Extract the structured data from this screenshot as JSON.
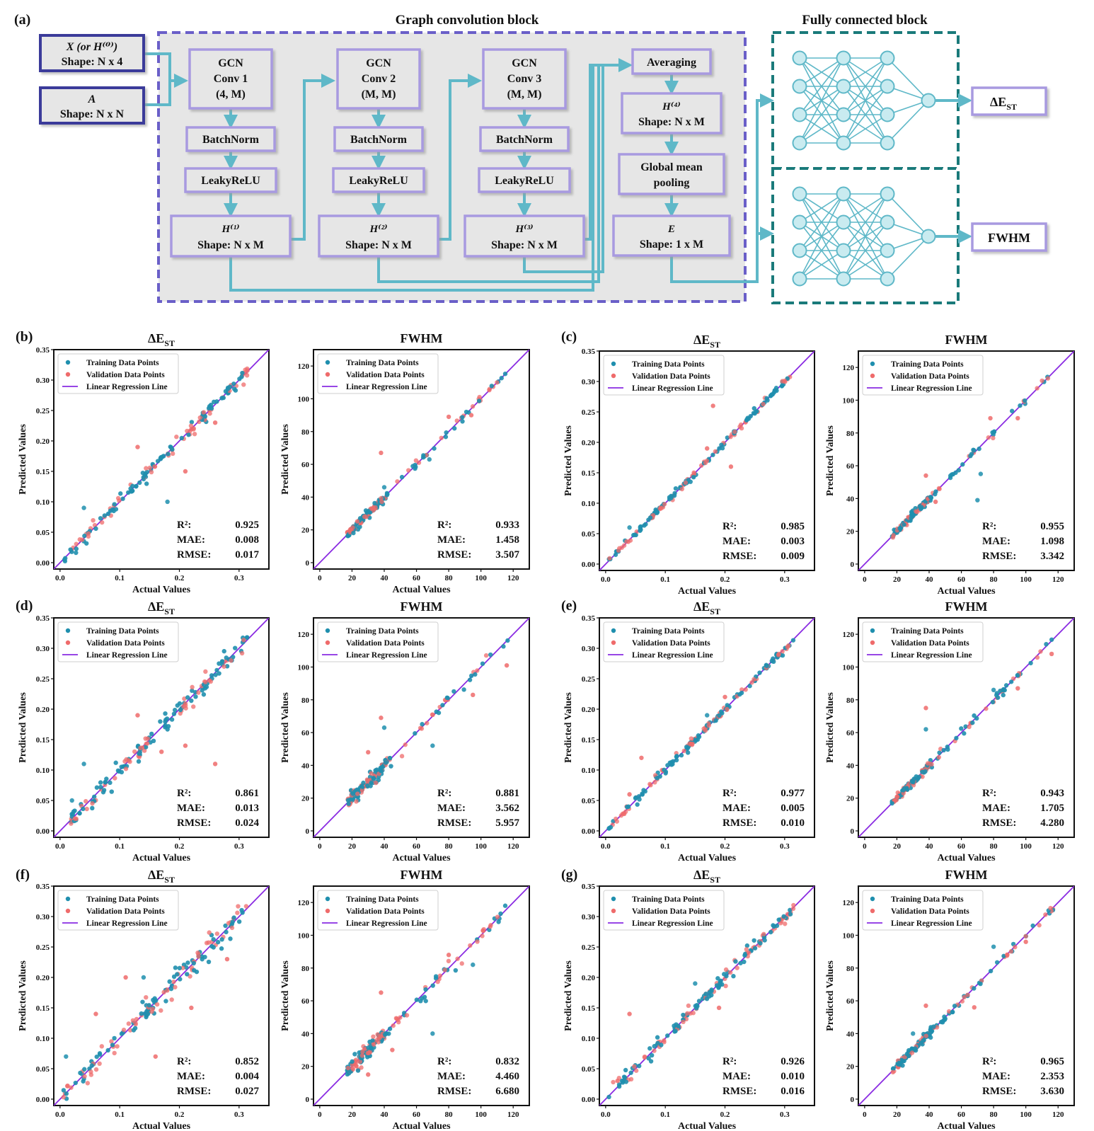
{
  "panel_a": {
    "letter": "(a)",
    "graph_conv_title": "Graph convolution block",
    "fc_title": "Fully connected block",
    "inputs": [
      {
        "line1": "X (or H⁽⁰⁾)",
        "line2": "Shape: N x 4"
      },
      {
        "line1": "A",
        "line2": "Shape: N x N"
      }
    ],
    "columns": [
      {
        "conv": [
          "GCN",
          "Conv 1",
          "(4, M)"
        ],
        "bn": "BatchNorm",
        "act": "LeakyReLU",
        "h1": "H⁽¹⁾",
        "h2": "Shape: N x M"
      },
      {
        "conv": [
          "GCN",
          "Conv 2",
          "(M, M)"
        ],
        "bn": "BatchNorm",
        "act": "LeakyReLU",
        "h1": "H⁽²⁾",
        "h2": "Shape: N x M"
      },
      {
        "conv": [
          "GCN",
          "Conv 3",
          "(M, M)"
        ],
        "bn": "BatchNorm",
        "act": "LeakyReLU",
        "h1": "H⁽³⁾",
        "h2": "Shape: N x M"
      }
    ],
    "right_col": {
      "avg": "Averaging",
      "h4_1": "H⁽⁴⁾",
      "h4_2": "Shape: N x M",
      "pool_1": "Global mean",
      "pool_2": "pooling",
      "e_1": "E",
      "e_2": "Shape: 1 x M"
    },
    "outputs": {
      "delta": "ΔE",
      "delta_sub": "ST",
      "fwhm": "FWHM"
    }
  },
  "legend": [
    "Training Data Points",
    "Validation Data Points",
    "Linear Regression Line"
  ],
  "axis_labels": {
    "x": "Actual Values",
    "y": "Predicted Values"
  },
  "metric_labels": [
    "R²:",
    "MAE:",
    "RMSE:"
  ],
  "colors": {
    "train": "#1f8fae",
    "val": "#ef6b6b",
    "line": "#8a2be2",
    "block_border": "#a89ae0",
    "dash_purple": "#6a5fc8",
    "dash_teal": "#1a7a7a",
    "arrow": "#5fb8c8",
    "input_border": "#3a3a9a"
  },
  "chart_data": [
    {
      "type": "scatter",
      "panel": "(b)",
      "title": "ΔE",
      "title_sub": "ST",
      "xlim": [
        0,
        0.35
      ],
      "ylim": [
        0,
        0.35
      ],
      "xticks": [
        "0.0",
        "0.1",
        "0.2",
        "0.3"
      ],
      "yticks": [
        "0.00",
        "0.05",
        "0.10",
        "0.15",
        "0.20",
        "0.25",
        "0.30",
        "0.35"
      ],
      "metrics": [
        "0.925",
        "0.008",
        "0.017"
      ],
      "spread": 0.011,
      "outliers": [
        [
          0.13,
          0.19
        ],
        [
          0.18,
          0.1
        ],
        [
          0.21,
          0.15
        ],
        [
          0.26,
          0.23
        ],
        [
          0.04,
          0.09
        ]
      ]
    },
    {
      "type": "scatter",
      "panel": "(b)",
      "title": "FWHM",
      "xlim": [
        0,
        130
      ],
      "ylim": [
        0,
        130
      ],
      "xticks": [
        "0",
        "20",
        "40",
        "60",
        "80",
        "100",
        "120"
      ],
      "yticks": [
        "0",
        "20",
        "40",
        "60",
        "80",
        "100",
        "120"
      ],
      "metrics": [
        "0.933",
        "1.458",
        "3.507"
      ],
      "spread": 2.5,
      "outliers": [
        [
          38,
          67
        ],
        [
          40,
          46
        ],
        [
          80,
          89
        ],
        [
          94,
          90
        ],
        [
          68,
          63
        ]
      ]
    },
    {
      "type": "scatter",
      "panel": "(c)",
      "title": "ΔE",
      "title_sub": "ST",
      "xlim": [
        0,
        0.35
      ],
      "ylim": [
        0,
        0.35
      ],
      "xticks": [
        "0.0",
        "0.1",
        "0.2",
        "0.3"
      ],
      "yticks": [
        "0.00",
        "0.05",
        "0.10",
        "0.15",
        "0.20",
        "0.25",
        "0.30",
        "0.35"
      ],
      "metrics": [
        "0.985",
        "0.003",
        "0.009"
      ],
      "spread": 0.005,
      "outliers": [
        [
          0.18,
          0.26
        ],
        [
          0.04,
          0.06
        ],
        [
          0.21,
          0.16
        ],
        [
          0.17,
          0.19
        ]
      ]
    },
    {
      "type": "scatter",
      "panel": "(c)",
      "title": "FWHM",
      "xlim": [
        0,
        130
      ],
      "ylim": [
        0,
        130
      ],
      "xticks": [
        "0",
        "20",
        "40",
        "60",
        "80",
        "100",
        "120"
      ],
      "yticks": [
        "0",
        "20",
        "40",
        "60",
        "80",
        "100",
        "120"
      ],
      "metrics": [
        "0.955",
        "1.098",
        "3.342"
      ],
      "spread": 2.0,
      "outliers": [
        [
          38,
          54
        ],
        [
          70,
          39
        ],
        [
          78,
          89
        ],
        [
          95,
          89
        ],
        [
          72,
          55
        ],
        [
          44,
          38
        ]
      ]
    },
    {
      "type": "scatter",
      "panel": "(d)",
      "title": "ΔE",
      "title_sub": "ST",
      "xlim": [
        0,
        0.35
      ],
      "ylim": [
        0,
        0.35
      ],
      "xticks": [
        "0.0",
        "0.1",
        "0.2",
        "0.3"
      ],
      "yticks": [
        "0.00",
        "0.05",
        "0.10",
        "0.15",
        "0.20",
        "0.25",
        "0.30",
        "0.35"
      ],
      "metrics": [
        "0.861",
        "0.013",
        "0.024"
      ],
      "spread": 0.016,
      "outliers": [
        [
          0.26,
          0.11
        ],
        [
          0.04,
          0.11
        ],
        [
          0.13,
          0.19
        ],
        [
          0.21,
          0.14
        ],
        [
          0.02,
          0.05
        ],
        [
          0.17,
          0.13
        ]
      ]
    },
    {
      "type": "scatter",
      "panel": "(d)",
      "title": "FWHM",
      "xlim": [
        0,
        130
      ],
      "ylim": [
        0,
        130
      ],
      "xticks": [
        "0",
        "20",
        "40",
        "60",
        "80",
        "100",
        "120"
      ],
      "yticks": [
        "0",
        "20",
        "40",
        "60",
        "80",
        "100",
        "120"
      ],
      "metrics": [
        "0.881",
        "3.562",
        "5.957"
      ],
      "spread": 4.0,
      "outliers": [
        [
          38,
          69
        ],
        [
          40,
          63
        ],
        [
          95,
          83
        ],
        [
          116,
          101
        ],
        [
          70,
          52
        ],
        [
          30,
          48
        ]
      ]
    },
    {
      "type": "scatter",
      "panel": "(e)",
      "title": "ΔE",
      "title_sub": "ST",
      "xlim": [
        0,
        0.35
      ],
      "ylim": [
        0,
        0.35
      ],
      "xticks": [
        "0.0",
        "0.1",
        "0.2",
        "0.3"
      ],
      "yticks": [
        "0.00",
        "0.05",
        "0.10",
        "0.15",
        "0.20",
        "0.25",
        "0.30",
        "0.35"
      ],
      "metrics": [
        "0.977",
        "0.005",
        "0.010"
      ],
      "spread": 0.007,
      "outliers": [
        [
          0.06,
          0.12
        ],
        [
          0.17,
          0.19
        ],
        [
          0.2,
          0.22
        ],
        [
          0.04,
          0.06
        ]
      ]
    },
    {
      "type": "scatter",
      "panel": "(e)",
      "title": "FWHM",
      "xlim": [
        0,
        130
      ],
      "ylim": [
        0,
        130
      ],
      "xticks": [
        "0",
        "20",
        "40",
        "60",
        "80",
        "100",
        "120"
      ],
      "yticks": [
        "0",
        "20",
        "40",
        "60",
        "80",
        "100",
        "120"
      ],
      "metrics": [
        "0.943",
        "1.705",
        "4.280"
      ],
      "spread": 2.3,
      "outliers": [
        [
          38,
          75
        ],
        [
          38,
          62
        ],
        [
          95,
          87
        ],
        [
          116,
          108
        ],
        [
          80,
          86
        ]
      ]
    },
    {
      "type": "scatter",
      "panel": "(f)",
      "title": "ΔE",
      "title_sub": "ST",
      "xlim": [
        0,
        0.35
      ],
      "ylim": [
        0,
        0.35
      ],
      "xticks": [
        "0.0",
        "0.1",
        "0.2",
        "0.3"
      ],
      "yticks": [
        "0.00",
        "0.05",
        "0.10",
        "0.15",
        "0.20",
        "0.25",
        "0.30",
        "0.35"
      ],
      "metrics": [
        "0.852",
        "0.004",
        "0.027"
      ],
      "spread": 0.017,
      "outliers": [
        [
          0.11,
          0.2
        ],
        [
          0.14,
          0.2
        ],
        [
          0.06,
          0.14
        ],
        [
          0.16,
          0.07
        ],
        [
          0.01,
          0.07
        ],
        [
          0.28,
          0.23
        ],
        [
          0.22,
          0.15
        ]
      ]
    },
    {
      "type": "scatter",
      "panel": "(f)",
      "title": "FWHM",
      "xlim": [
        0,
        130
      ],
      "ylim": [
        0,
        130
      ],
      "xticks": [
        "0",
        "20",
        "40",
        "60",
        "80",
        "100",
        "120"
      ],
      "yticks": [
        "0",
        "20",
        "40",
        "60",
        "80",
        "100",
        "120"
      ],
      "metrics": [
        "0.832",
        "4.460",
        "6.680"
      ],
      "spread": 5.0,
      "outliers": [
        [
          38,
          65
        ],
        [
          95,
          82
        ],
        [
          80,
          88
        ],
        [
          45,
          30
        ],
        [
          70,
          40
        ],
        [
          30,
          15
        ]
      ]
    },
    {
      "type": "scatter",
      "panel": "(g)",
      "title": "ΔE",
      "title_sub": "ST",
      "xlim": [
        0,
        0.35
      ],
      "ylim": [
        0,
        0.35
      ],
      "xticks": [
        "0.0",
        "0.1",
        "0.2",
        "0.3"
      ],
      "yticks": [
        "0.00",
        "0.05",
        "0.10",
        "0.15",
        "0.20",
        "0.25",
        "0.30",
        "0.35"
      ],
      "metrics": [
        "0.926",
        "0.010",
        "0.016"
      ],
      "spread": 0.011,
      "outliers": [
        [
          0.04,
          0.14
        ],
        [
          0.15,
          0.19
        ],
        [
          0.02,
          0.03
        ],
        [
          0.19,
          0.15
        ]
      ]
    },
    {
      "type": "scatter",
      "panel": "(g)",
      "title": "FWHM",
      "xlim": [
        0,
        130
      ],
      "ylim": [
        0,
        130
      ],
      "xticks": [
        "0",
        "20",
        "40",
        "60",
        "80",
        "100",
        "120"
      ],
      "yticks": [
        "0",
        "20",
        "40",
        "60",
        "80",
        "100",
        "120"
      ],
      "metrics": [
        "0.965",
        "2.353",
        "3.630"
      ],
      "spread": 2.5,
      "outliers": [
        [
          38,
          57
        ],
        [
          80,
          93
        ],
        [
          68,
          56
        ],
        [
          100,
          96
        ],
        [
          30,
          40
        ]
      ]
    }
  ]
}
